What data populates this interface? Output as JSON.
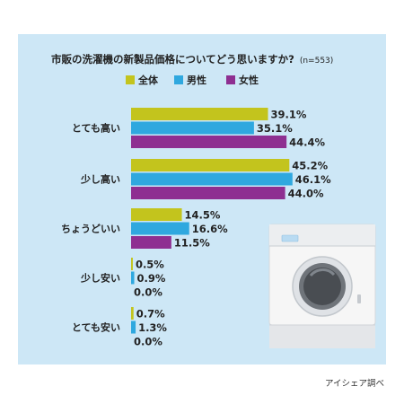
{
  "chart_data": {
    "type": "bar",
    "orientation": "horizontal",
    "title": "市販の洗濯機の新製品価格についてどう思いますか?",
    "sample_note": "(n=553)",
    "categories": [
      "とても高い",
      "少し高い",
      "ちょうどいい",
      "少し安い",
      "とても安い"
    ],
    "series": [
      {
        "name": "全体",
        "color": "#c3c41d",
        "values": [
          39.1,
          45.2,
          14.5,
          0.5,
          0.7
        ]
      },
      {
        "name": "男性",
        "color": "#2fa8df",
        "values": [
          35.1,
          46.1,
          16.6,
          0.9,
          1.3
        ]
      },
      {
        "name": "女性",
        "color": "#8e2f91",
        "values": [
          44.4,
          44.0,
          11.5,
          0.0,
          0.0
        ]
      }
    ],
    "value_suffix": "%",
    "xlim": [
      0,
      60
    ],
    "legend_position": "top",
    "grid": false,
    "background_color": "#cde7f6",
    "source": "アイシェア調べ"
  },
  "decor": {
    "image": "washing-machine-icon"
  }
}
